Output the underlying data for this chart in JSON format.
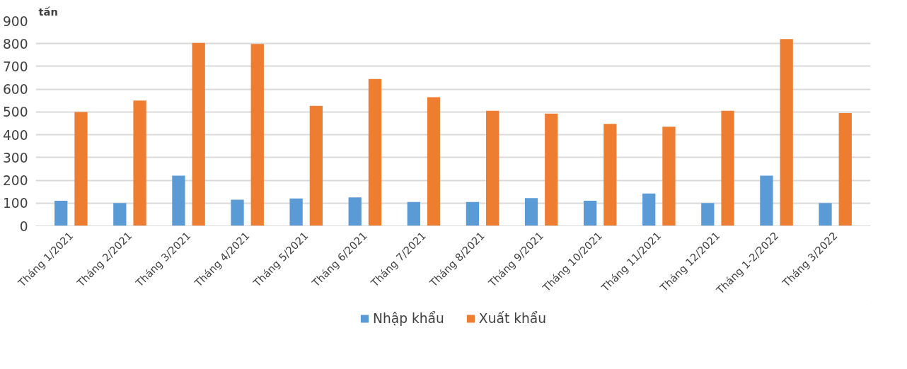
{
  "chart_data": {
    "type": "bar",
    "ylabel": "tấn",
    "categories": [
      "Tháng 1/2021",
      "Tháng 2/2021",
      "Tháng 3/2021",
      "Tháng 4/2021",
      "Tháng 5/2021",
      "Tháng 6/2021",
      "Tháng 7/2021",
      "Tháng 8/2021",
      "Tháng 9/2021",
      "Tháng 10/2021",
      "Tháng 11/2021",
      "Tháng 12/2021",
      "Tháng 1-2/2022",
      "Tháng 3/2022"
    ],
    "series": [
      {
        "name": "Nhập khẩu",
        "color": "#5b9bd5",
        "values": [
          110,
          100,
          220,
          115,
          120,
          125,
          105,
          105,
          122,
          110,
          142,
          100,
          220,
          100
        ]
      },
      {
        "name": "Xuất khẩu",
        "color": "#ed7d31",
        "values": [
          500,
          550,
          803,
          798,
          527,
          645,
          565,
          505,
          493,
          448,
          435,
          505,
          820,
          495
        ]
      }
    ],
    "ylim": [
      0,
      900
    ],
    "yticks": [
      0,
      100,
      200,
      300,
      400,
      500,
      600,
      700,
      800,
      900
    ],
    "grid": "y",
    "legend": "bottom"
  }
}
